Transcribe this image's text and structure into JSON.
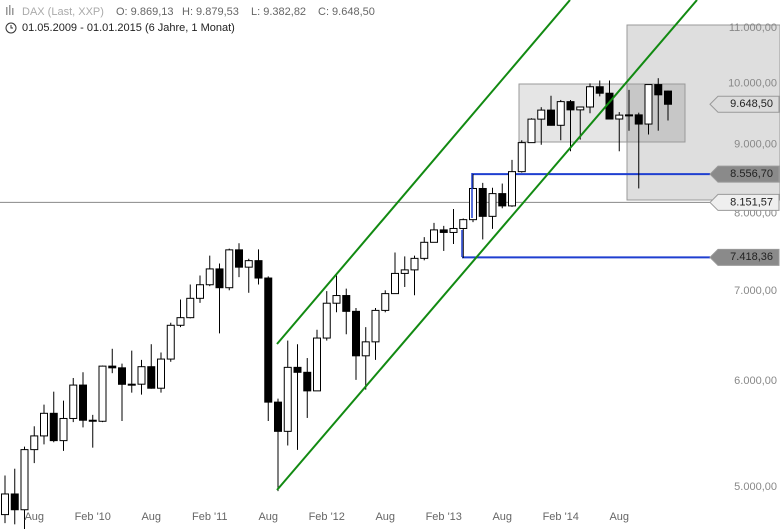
{
  "header": {
    "name": "DAX (Last, XXP)",
    "open": "O: 9.869,13",
    "high": "H: 9.879,53",
    "low": "L: 9.382,82",
    "close": "C: 9.648,50",
    "range": "01.05.2009 - 01.01.2015 (6 Jahre, 1 Monat)"
  },
  "chart_data": {
    "type": "candlestick",
    "log_scale": true,
    "grid": false,
    "categories": [
      null,
      null,
      null,
      "Aug",
      null,
      null,
      null,
      null,
      null,
      "Feb '10",
      null,
      null,
      null,
      null,
      null,
      "Aug",
      null,
      null,
      null,
      null,
      null,
      "Feb '11",
      null,
      null,
      null,
      null,
      null,
      "Aug",
      null,
      null,
      null,
      null,
      null,
      "Feb '12",
      null,
      null,
      null,
      null,
      null,
      "Aug",
      null,
      null,
      null,
      null,
      null,
      "Feb '13",
      null,
      null,
      null,
      null,
      null,
      "Aug",
      null,
      null,
      null,
      null,
      null,
      "Feb '14",
      null,
      null,
      null,
      null,
      null,
      "Aug",
      null,
      null,
      null,
      null,
      null
    ],
    "open": [
      4769,
      4941,
      4809,
      5332,
      5459,
      5675,
      5415,
      5625,
      5957,
      5608,
      5598,
      6154,
      6136,
      5965,
      5966,
      6148,
      5925,
      6229,
      6601,
      6688,
      6914,
      7077,
      7272,
      7041,
      7514,
      7294,
      7376,
      7159,
      5785,
      5502,
      6141,
      6089,
      5898,
      6458,
      6856,
      6947,
      6761,
      6264,
      6416,
      6772,
      6970,
      7216,
      7260,
      7405,
      7612,
      7776,
      7742,
      7795,
      7914,
      8349,
      7959,
      8276,
      8103,
      8594,
      9033,
      9405,
      9552,
      9306,
      9692,
      9556,
      9603,
      9943,
      9833,
      9407,
      9470,
      9474,
      9326,
      9980,
      9869.13
    ],
    "high": [
      5100,
      5160,
      5360,
      5550,
      5760,
      5890,
      5800,
      6030,
      6090,
      5660,
      6160,
      6340,
      6180,
      6320,
      6220,
      6390,
      6300,
      6630,
      6900,
      7080,
      7190,
      7440,
      7340,
      7530,
      7600,
      7400,
      7520,
      7180,
      5820,
      6430,
      6390,
      6240,
      6550,
      7000,
      7190,
      7030,
      6800,
      6580,
      6800,
      7010,
      7480,
      7430,
      7440,
      7680,
      7870,
      7830,
      8060,
      7930,
      8560,
      8430,
      8360,
      8420,
      8770,
      9070,
      9420,
      9600,
      9790,
      9720,
      9720,
      9600,
      10000,
      10050,
      10050,
      9520,
      9890,
      9510,
      9980,
      10090,
      9879.53
    ],
    "low": [
      4700,
      4690,
      4580,
      5210,
      5380,
      5400,
      5320,
      5590,
      5540,
      5350,
      5590,
      6080,
      5600,
      5880,
      5860,
      5920,
      5880,
      6200,
      6580,
      6680,
      6860,
      7060,
      6510,
      7010,
      7170,
      6980,
      7080,
      5600,
      4965,
      5370,
      5330,
      5630,
      5900,
      6430,
      6750,
      6500,
      6010,
      5910,
      6220,
      6750,
      6970,
      7050,
      6950,
      7380,
      7610,
      7500,
      7590,
      7410,
      7880,
      7650,
      7790,
      8070,
      8090,
      8580,
      9030,
      9000,
      9300,
      9070,
      8900,
      9080,
      9500,
      9780,
      9400,
      8900,
      9220,
      8350,
      9160,
      9220,
      9382.82
    ],
    "close": [
      4941,
      4809,
      5332,
      5459,
      5675,
      5415,
      5625,
      5957,
      5608,
      5598,
      6154,
      6136,
      5965,
      5966,
      6148,
      5925,
      6229,
      6601,
      6688,
      6914,
      7077,
      7272,
      7041,
      7514,
      7294,
      7376,
      7159,
      5785,
      5502,
      6141,
      6089,
      5898,
      6458,
      6856,
      6947,
      6761,
      6264,
      6416,
      6772,
      6970,
      7216,
      7260,
      7405,
      7612,
      7776,
      7742,
      7795,
      7914,
      8349,
      7959,
      8276,
      8103,
      8594,
      9033,
      9405,
      9552,
      9306,
      9692,
      9556,
      9603,
      9943,
      9833,
      9407,
      9470,
      9474,
      9326,
      9980,
      9806,
      9648.5
    ],
    "up_color": "#ffffff",
    "down_color": "#000000",
    "ylim": [
      4725,
      11540
    ],
    "yticks": [
      {
        "value": 5000,
        "label": "5.000,00"
      },
      {
        "value": 6000,
        "label": "6.000,00"
      },
      {
        "value": 7000,
        "label": "7.000,00"
      },
      {
        "value": 8000,
        "label": "8.000,00"
      },
      {
        "value": 9000,
        "label": "9.000,00"
      },
      {
        "value": 10000,
        "label": "10.000,00"
      },
      {
        "value": 11000,
        "label": "11.000,00"
      }
    ],
    "price_tags": [
      {
        "value": 9648.5,
        "label": "9.648,50",
        "color": "#dcdcdc"
      },
      {
        "value": 8556.7,
        "label": "8.556,70",
        "color": "#8a8a8a",
        "line_color": "#1f3fd0"
      },
      {
        "value": 8151.57,
        "label": "8.151,57",
        "color": "#efefef",
        "line_color": "#888888"
      },
      {
        "value": 7418.36,
        "label": "7.418,36",
        "color": "#8a8a8a",
        "line_color": "#1f3fd0"
      }
    ]
  }
}
